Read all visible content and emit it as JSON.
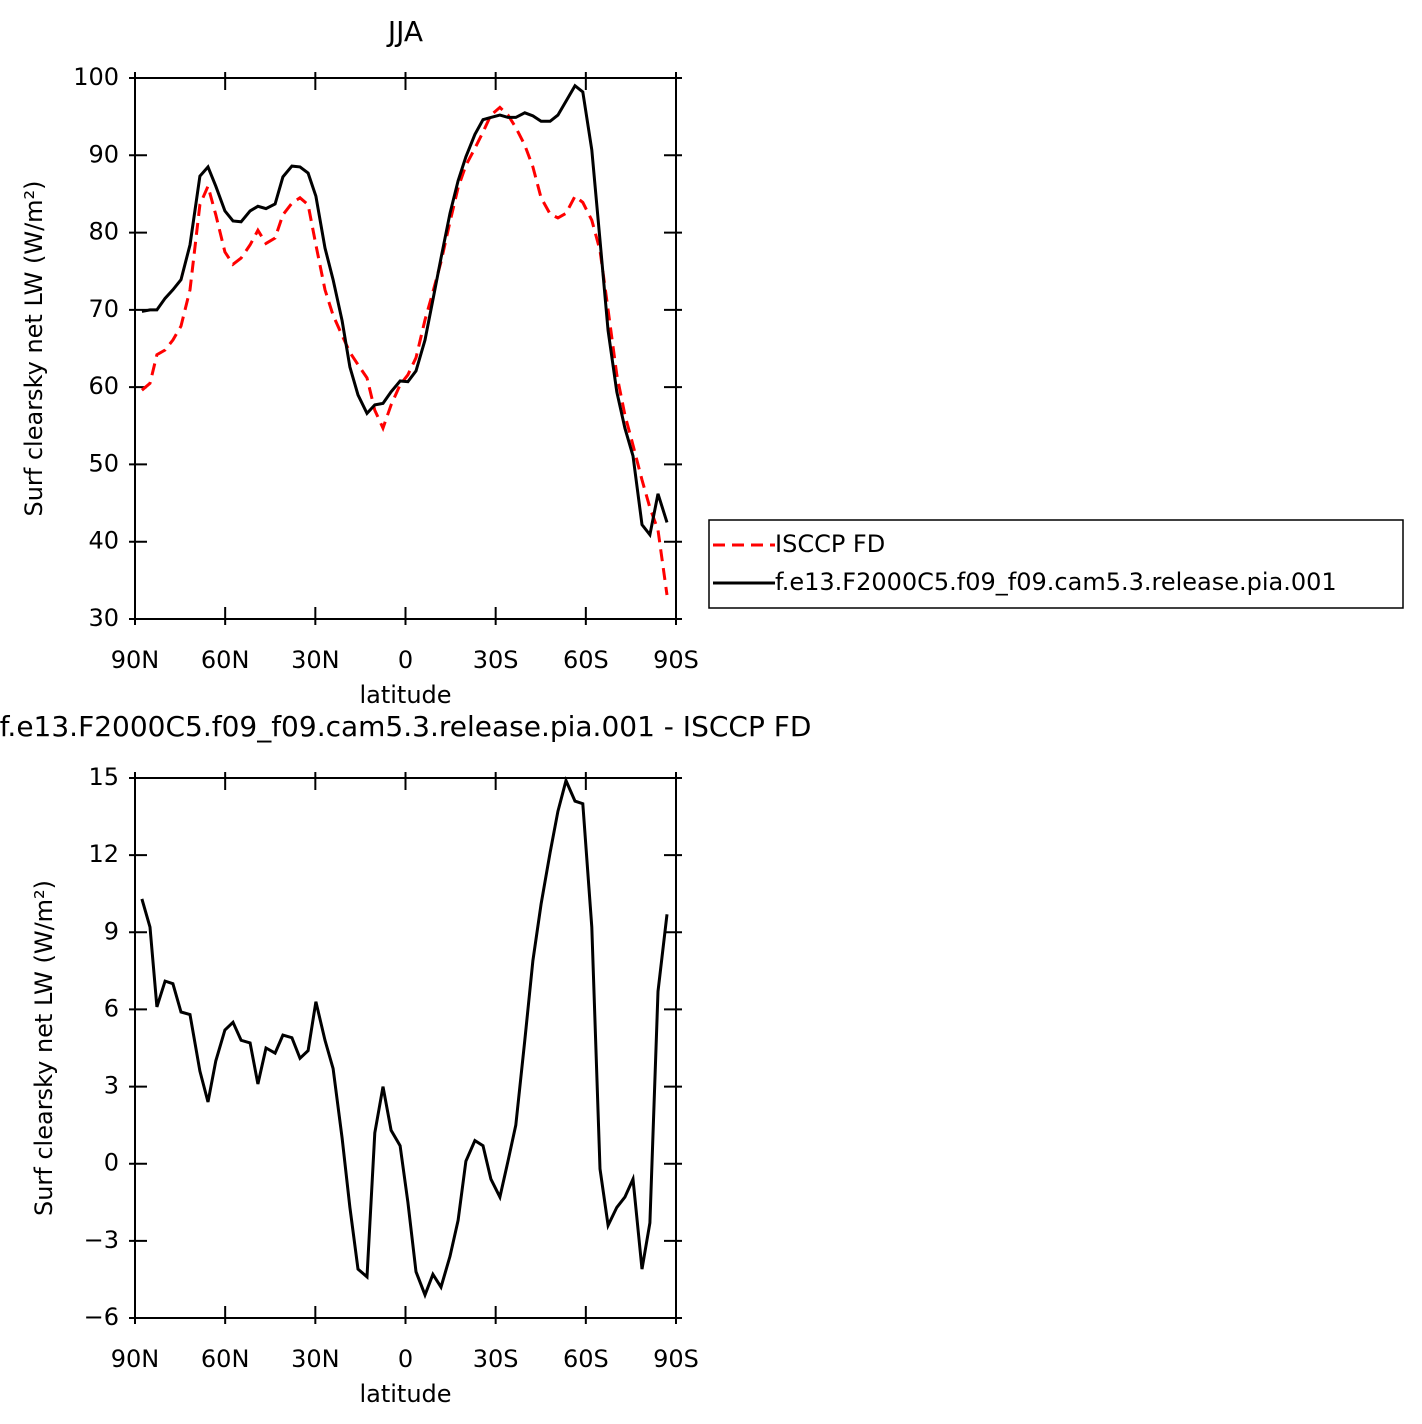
{
  "chart_data": [
    {
      "type": "line",
      "title": "JJA",
      "x_label": "latitude",
      "y_label": "Surf clearsky net LW (W/m²)",
      "x": [
        87.7,
        85.0,
        82.7,
        80.0,
        77.4,
        74.7,
        71.7,
        68.4,
        65.7,
        63.1,
        60.1,
        57.4,
        54.7,
        51.7,
        49.1,
        46.4,
        43.4,
        40.8,
        37.8,
        35.1,
        32.4,
        29.8,
        26.8,
        24.1,
        21.1,
        18.5,
        15.8,
        12.8,
        10.2,
        7.5,
        4.8,
        1.8,
        -0.8,
        -3.5,
        -6.5,
        -9.1,
        -11.8,
        -14.8,
        -17.5,
        -20.1,
        -23.1,
        -25.8,
        -28.4,
        -31.4,
        -34.1,
        -36.7,
        -39.7,
        -42.4,
        -45.1,
        -48.1,
        -50.7,
        -53.4,
        -56.4,
        -59.0,
        -62.0,
        -64.7,
        -67.4,
        -70.3,
        -73.0,
        -75.7,
        -78.7,
        -81.3,
        -84.0,
        -87.0
      ],
      "series": [
        {
          "name": "ISCCP FD",
          "color": "#ff0000",
          "dashed": true,
          "values": [
            59.6,
            60.5,
            64.2,
            64.8,
            66.1,
            67.9,
            72.6,
            83.6,
            86,
            82.3,
            77.5,
            75.9,
            76.7,
            78.4,
            80.3,
            78.6,
            79.3,
            82.3,
            83.8,
            84.5,
            83.6,
            78.4,
            72.6,
            69.3,
            66.7,
            64.5,
            62.9,
            61.2,
            57,
            54.7,
            57.7,
            60.3,
            61.6,
            63.8,
            68.7,
            72.3,
            76.2,
            81.4,
            85.8,
            88.7,
            90.9,
            93,
            95.2,
            96.2,
            95.2,
            93.6,
            91.3,
            88.5,
            84.5,
            82.4,
            81.9,
            82.5,
            84.7,
            83.9,
            81.6,
            77.7,
            70,
            61.6,
            56.4,
            52.5,
            48,
            44.4,
            41.5,
            33.1
          ]
        },
        {
          "name": "f.e13.F2000C5.f09_f09.cam5.3.release.pia.001",
          "color": "#000000",
          "dashed": false,
          "values": [
            69.8,
            70,
            70,
            71.5,
            72.6,
            73.9,
            78.4,
            87.3,
            88.5,
            86,
            82.8,
            81.5,
            81.4,
            82.8,
            83.4,
            83.1,
            83.7,
            87.2,
            88.6,
            88.5,
            87.7,
            84.7,
            78,
            73.9,
            68.6,
            62.6,
            59,
            56.6,
            57.7,
            57.9,
            59.4,
            60.8,
            60.7,
            62.1,
            66.1,
            71.3,
            76.7,
            82.5,
            86.7,
            89.8,
            92.7,
            94.6,
            94.9,
            95.2,
            94.9,
            94.9,
            95.5,
            95.1,
            94.4,
            94.4,
            95.2,
            97,
            99,
            98.2,
            90.7,
            79,
            67.3,
            59.4,
            54.7,
            51.1,
            42.2,
            40.9,
            46.2,
            42.5
          ]
        }
      ],
      "xlim": [
        90,
        -90
      ],
      "xticks": [
        {
          "value": 90,
          "label": "90N"
        },
        {
          "value": 60,
          "label": "60N"
        },
        {
          "value": 30,
          "label": "30N"
        },
        0,
        {
          "value": -30,
          "label": "30S"
        },
        {
          "value": -60,
          "label": "60S"
        },
        {
          "value": -90,
          "label": "90S"
        }
      ],
      "ylim": [
        30,
        100
      ],
      "yticks": [
        30,
        40,
        50,
        60,
        70,
        80,
        90,
        100
      ],
      "legend": "right"
    },
    {
      "type": "line",
      "title": "f.e13.F2000C5.f09_f09.cam5.3.release.pia.001 - ISCCP FD",
      "x_label": "latitude",
      "y_label": "Surf clearsky net LW (W/m²)",
      "x": [
        87.7,
        85.0,
        82.7,
        80.0,
        77.4,
        74.7,
        71.7,
        68.4,
        65.7,
        63.1,
        60.1,
        57.4,
        54.7,
        51.7,
        49.1,
        46.4,
        43.4,
        40.8,
        37.8,
        35.1,
        32.4,
        29.8,
        26.8,
        24.1,
        21.1,
        18.5,
        15.8,
        12.8,
        10.2,
        7.5,
        4.8,
        1.8,
        -0.8,
        -3.5,
        -6.5,
        -9.1,
        -11.8,
        -14.8,
        -17.5,
        -20.1,
        -23.1,
        -25.8,
        -28.4,
        -31.4,
        -34.1,
        -36.7,
        -39.7,
        -42.4,
        -45.1,
        -48.1,
        -50.7,
        -53.4,
        -56.4,
        -59.0,
        -62.0,
        -64.7,
        -67.4,
        -70.3,
        -73.0,
        -75.7,
        -78.7,
        -81.3,
        -84.0,
        -87.0
      ],
      "series": [
        {
          "color": "#000000",
          "dashed": false,
          "values": [
            10.3,
            9.2,
            6.1,
            7.1,
            7.0,
            5.9,
            5.8,
            3.6,
            2.4,
            4.0,
            5.2,
            5.5,
            4.8,
            4.7,
            3.1,
            4.5,
            4.3,
            5.0,
            4.9,
            4.1,
            4.4,
            6.3,
            4.8,
            3.7,
            1.0,
            -1.7,
            -4.1,
            -4.4,
            1.2,
            3.0,
            1.3,
            0.7,
            -1.5,
            -4.2,
            -5.1,
            -4.3,
            -4.8,
            -3.6,
            -2.2,
            0.1,
            0.9,
            0.7,
            -0.6,
            -1.3,
            0.1,
            1.5,
            4.8,
            7.9,
            10.1,
            12.1,
            13.7,
            14.9,
            14.1,
            14.0,
            9.2,
            -0.2,
            -2.4,
            -1.7,
            -1.3,
            -0.6,
            -4.1,
            -2.3,
            6.7,
            9.7
          ]
        }
      ],
      "xlim": [
        90,
        -90
      ],
      "xticks": [
        {
          "value": 90,
          "label": "90N"
        },
        {
          "value": 60,
          "label": "60N"
        },
        {
          "value": 30,
          "label": "30N"
        },
        0,
        {
          "value": -30,
          "label": "30S"
        },
        {
          "value": -60,
          "label": "60S"
        },
        {
          "value": -90,
          "label": "90S"
        }
      ],
      "ylim": [
        -6,
        15
      ],
      "yticks": [
        {
          "value": -6,
          "label": "−6"
        },
        {
          "value": -3,
          "label": "−3"
        },
        0,
        3,
        6,
        9,
        12,
        15
      ]
    }
  ]
}
